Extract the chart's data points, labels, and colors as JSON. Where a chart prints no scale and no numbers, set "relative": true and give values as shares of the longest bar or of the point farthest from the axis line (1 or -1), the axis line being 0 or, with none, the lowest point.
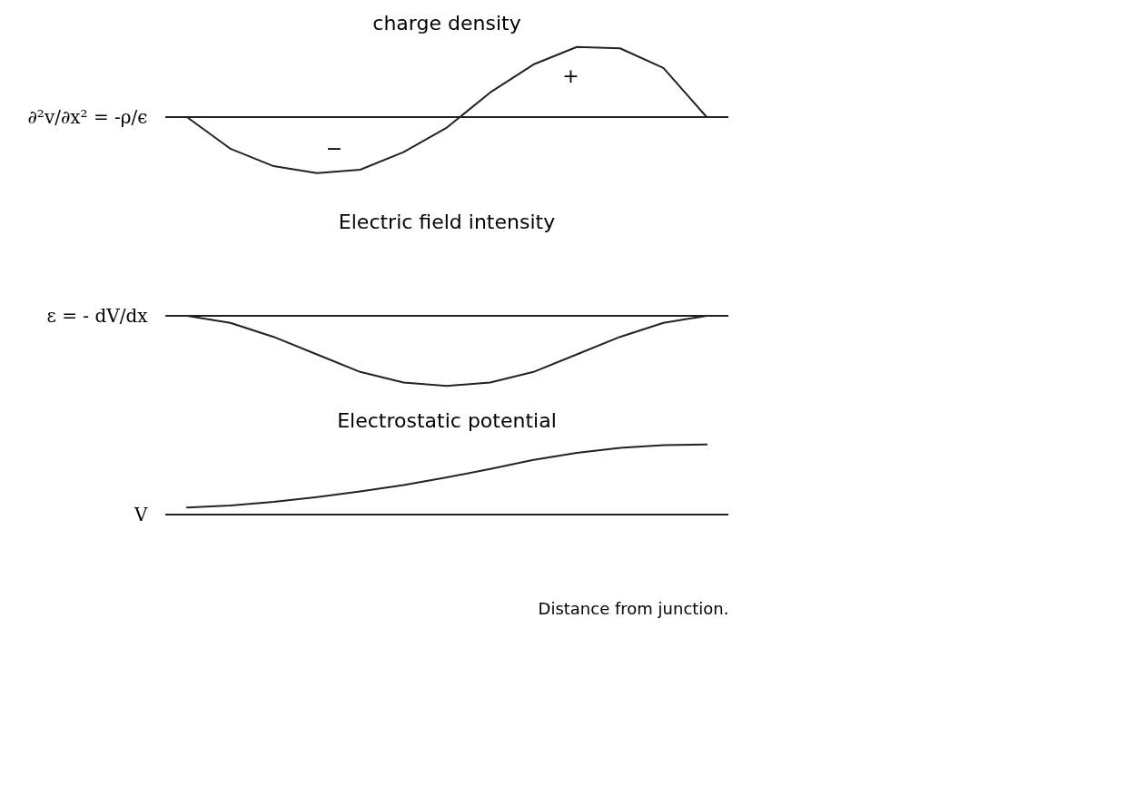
{
  "chart_data": [
    {
      "type": "line",
      "title": "charge density",
      "ylabel": "∂²v/∂x² = -ρ/ϵ",
      "relative": true,
      "tick_labels": false,
      "color": "#222222",
      "categories": [
        null,
        null,
        null,
        null,
        null,
        null,
        null,
        null,
        null,
        null,
        null,
        null,
        null
      ],
      "values": [
        0,
        -0.45,
        -0.7,
        -0.8,
        -0.75,
        -0.5,
        -0.15,
        0.35,
        0.75,
        1,
        0.98,
        0.7,
        0
      ],
      "annotations": [
        "+",
        "−"
      ]
    },
    {
      "type": "line",
      "title": "Electric field intensity",
      "ylabel": "ε = - dV/dx",
      "relative": true,
      "tick_labels": false,
      "color": "#222222",
      "categories": [
        null,
        null,
        null,
        null,
        null,
        null,
        null,
        null,
        null,
        null,
        null,
        null,
        null
      ],
      "values": [
        0,
        -0.1,
        -0.3,
        -0.55,
        -0.8,
        -0.95,
        -1,
        -0.95,
        -0.8,
        -0.55,
        -0.3,
        -0.1,
        0
      ]
    },
    {
      "type": "line",
      "title": "Electrostatic potential",
      "ylabel": "V",
      "xlabel": "Distance from junction.",
      "relative": true,
      "tick_labels": false,
      "color": "#222222",
      "categories": [
        null,
        null,
        null,
        null,
        null,
        null,
        null,
        null,
        null,
        null,
        null,
        null,
        null
      ],
      "values": [
        0.1,
        0.13,
        0.18,
        0.25,
        0.33,
        0.42,
        0.53,
        0.65,
        0.78,
        0.88,
        0.95,
        0.99,
        1
      ]
    }
  ]
}
